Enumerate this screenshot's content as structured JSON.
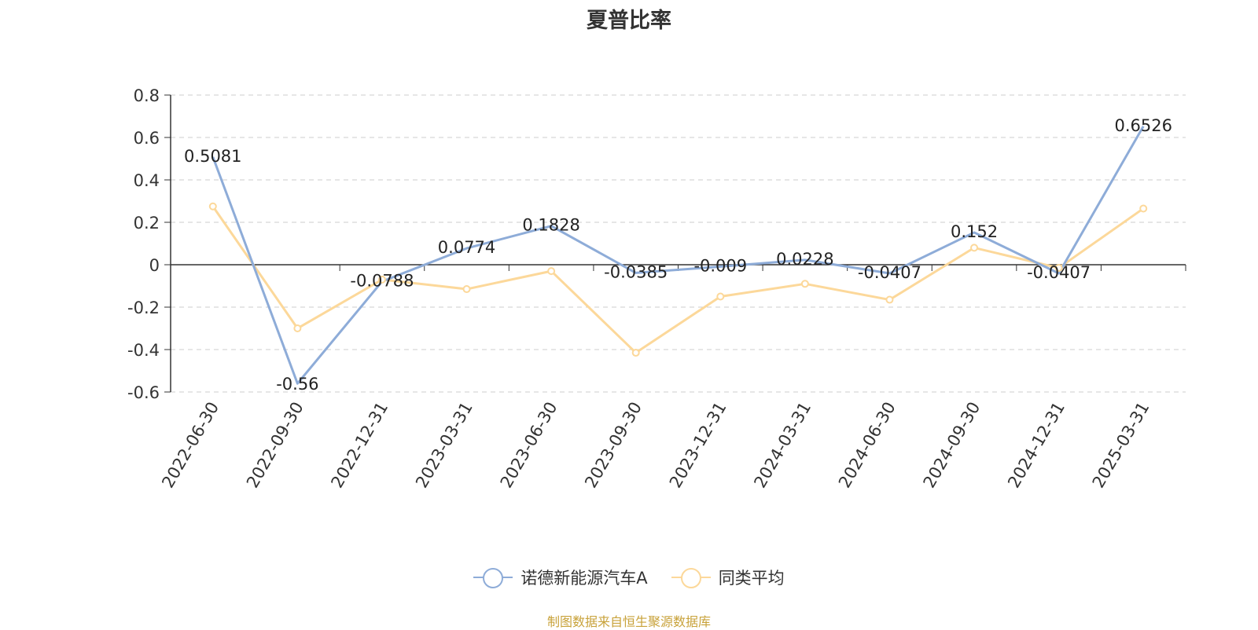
{
  "title": "夏普比率",
  "source": "制图数据来自恒生聚源数据库",
  "chart_data": {
    "type": "line",
    "title": "夏普比率",
    "x": [
      "2022-06-30",
      "2022-09-30",
      "2022-12-31",
      "2023-03-31",
      "2023-06-30",
      "2023-09-30",
      "2023-12-31",
      "2024-03-31",
      "2024-06-30",
      "2024-09-30",
      "2024-12-31",
      "2025-03-31"
    ],
    "ylim": [
      -0.6,
      0.8
    ],
    "yticks": [
      "0.8",
      "0.6",
      "0.4",
      "0.2",
      "0",
      "-0.2",
      "-0.4",
      "-0.6"
    ],
    "grid": true,
    "legend_position": "bottom",
    "series": [
      {
        "name": "诺德新能源汽车A",
        "color": "#8eacd8",
        "values": [
          0.5081,
          -0.56,
          -0.0788,
          0.0774,
          0.1828,
          -0.0385,
          -0.009,
          0.0228,
          -0.0407,
          0.152,
          -0.0407,
          0.6526
        ],
        "labels": [
          "0.5081",
          "-0.56",
          "-0.0788",
          "0.0774",
          "0.1828",
          "-0.0385",
          "-0.009",
          "0.0228",
          "-0.0407",
          "0.152",
          "-0.0407",
          "0.6526"
        ]
      },
      {
        "name": "同类平均",
        "color": "#fcd89a",
        "values": [
          0.275,
          -0.3,
          -0.07,
          -0.115,
          -0.03,
          -0.415,
          -0.15,
          -0.09,
          -0.165,
          0.08,
          -0.015,
          0.265
        ]
      }
    ]
  }
}
